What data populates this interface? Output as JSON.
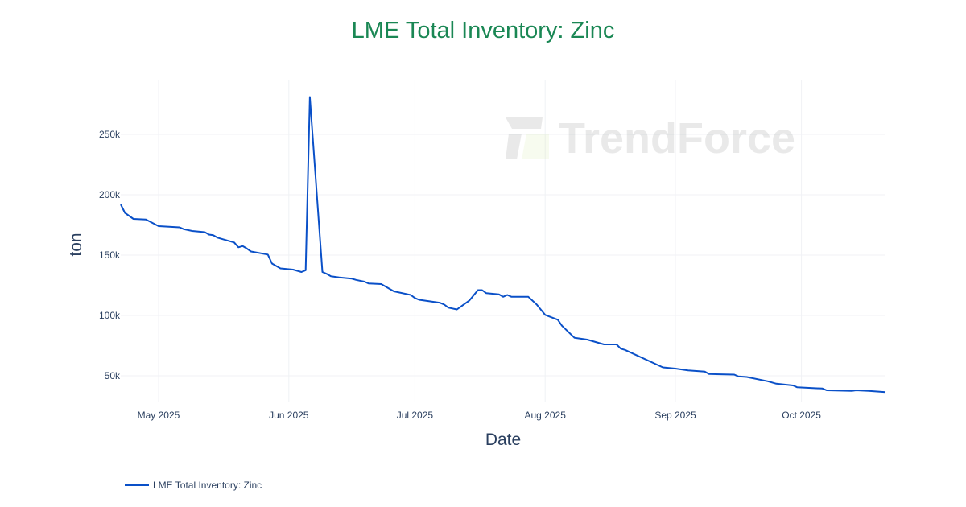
{
  "chart_data": {
    "type": "line",
    "title": "LME Total Inventory: Zinc",
    "xlabel": "Date",
    "ylabel": "ton",
    "x_ticks": [
      "May 2025",
      "Jun 2025",
      "Jul 2025",
      "Aug 2025",
      "Sep 2025",
      "Oct 2025"
    ],
    "y_ticks": [
      "50k",
      "100k",
      "150k",
      "200k",
      "250k"
    ],
    "ylim": [
      25000,
      295000
    ],
    "xlim": [
      "2025-04-22",
      "2025-10-21"
    ],
    "grid": true,
    "legend_position": "bottom-left",
    "series": [
      {
        "name": "LME Total Inventory: Zinc",
        "color": "#0a50c8",
        "x": [
          "2025-04-22",
          "2025-04-23",
          "2025-04-25",
          "2025-04-28",
          "2025-05-01",
          "2025-05-06",
          "2025-05-07",
          "2025-05-09",
          "2025-05-12",
          "2025-05-13",
          "2025-05-14",
          "2025-05-15",
          "2025-05-19",
          "2025-05-20",
          "2025-05-21",
          "2025-05-22",
          "2025-05-23",
          "2025-05-27",
          "2025-05-28",
          "2025-05-30",
          "2025-06-02",
          "2025-06-04",
          "2025-06-05",
          "2025-06-06",
          "2025-06-09",
          "2025-06-10",
          "2025-06-11",
          "2025-06-13",
          "2025-06-16",
          "2025-06-17",
          "2025-06-19",
          "2025-06-20",
          "2025-06-23",
          "2025-06-24",
          "2025-06-26",
          "2025-06-30",
          "2025-07-01",
          "2025-07-02",
          "2025-07-07",
          "2025-07-08",
          "2025-07-09",
          "2025-07-11",
          "2025-07-14",
          "2025-07-16",
          "2025-07-17",
          "2025-07-18",
          "2025-07-21",
          "2025-07-22",
          "2025-07-23",
          "2025-07-24",
          "2025-07-28",
          "2025-07-30",
          "2025-08-01",
          "2025-08-04",
          "2025-08-05",
          "2025-08-08",
          "2025-08-11",
          "2025-08-15",
          "2025-08-18",
          "2025-08-19",
          "2025-08-20",
          "2025-08-29",
          "2025-09-01",
          "2025-09-04",
          "2025-09-08",
          "2025-09-09",
          "2025-09-15",
          "2025-09-16",
          "2025-09-18",
          "2025-09-23",
          "2025-09-25",
          "2025-09-29",
          "2025-09-30",
          "2025-10-06",
          "2025-10-07",
          "2025-10-13",
          "2025-10-14",
          "2025-10-17",
          "2025-10-21"
        ],
        "y": [
          192000,
          185000,
          180000,
          179500,
          174000,
          173000,
          171500,
          170000,
          169000,
          167000,
          166500,
          164500,
          160500,
          156500,
          157500,
          155500,
          153000,
          150500,
          143000,
          139000,
          138000,
          136000,
          137500,
          281000,
          136000,
          134500,
          132500,
          131500,
          130500,
          129500,
          128000,
          126500,
          126000,
          124000,
          120000,
          117000,
          114500,
          113000,
          110500,
          109000,
          106500,
          105000,
          112500,
          121000,
          121000,
          118500,
          117500,
          115500,
          117000,
          115500,
          115500,
          109000,
          100500,
          96500,
          91500,
          81500,
          80000,
          76000,
          76000,
          72500,
          71500,
          57000,
          56000,
          54500,
          53500,
          51500,
          51000,
          49500,
          49000,
          45500,
          43500,
          42000,
          40500,
          39500,
          38000,
          37500,
          38000,
          37500,
          36500
        ]
      }
    ]
  },
  "watermark": {
    "text": "TrendForce"
  }
}
